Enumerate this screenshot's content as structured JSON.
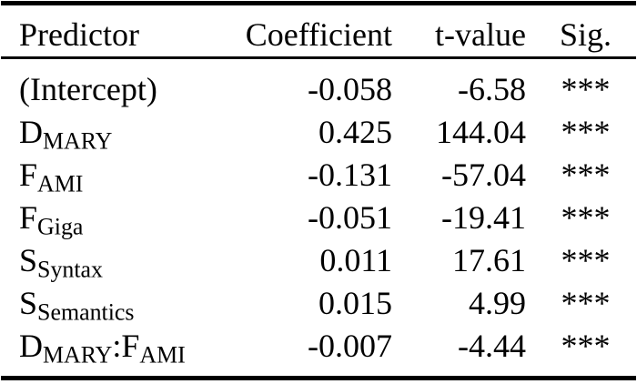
{
  "colors": {
    "text": "#000000",
    "rule": "#000000",
    "background": "#ffffff"
  },
  "table": {
    "columns": {
      "predictor": "Predictor",
      "coefficient": "Coefficient",
      "tvalue": "t-value",
      "sig": "Sig."
    },
    "rows": [
      {
        "predictor": {
          "base": "(Intercept)"
        },
        "coefficient": "-0.058",
        "tvalue": "-6.58",
        "sig": "***"
      },
      {
        "predictor": {
          "base": "D",
          "sub": "MARY"
        },
        "coefficient": "0.425",
        "tvalue": "144.04",
        "sig": "***"
      },
      {
        "predictor": {
          "base": "F",
          "sub": "AMI"
        },
        "coefficient": "-0.131",
        "tvalue": "-57.04",
        "sig": "***"
      },
      {
        "predictor": {
          "base": "F",
          "sub": "Giga"
        },
        "coefficient": "-0.051",
        "tvalue": "-19.41",
        "sig": "***"
      },
      {
        "predictor": {
          "base": "S",
          "sub": "Syntax"
        },
        "coefficient": "0.011",
        "tvalue": "17.61",
        "sig": "***"
      },
      {
        "predictor": {
          "base": "S",
          "sub": "Semantics"
        },
        "coefficient": "0.015",
        "tvalue": "4.99",
        "sig": "***"
      },
      {
        "predictor": {
          "base": "D",
          "sub": "MARY",
          "sep": ":",
          "base2": "F",
          "sub2": "AMI"
        },
        "coefficient": "-0.007",
        "tvalue": "-4.44",
        "sig": "***"
      }
    ]
  }
}
